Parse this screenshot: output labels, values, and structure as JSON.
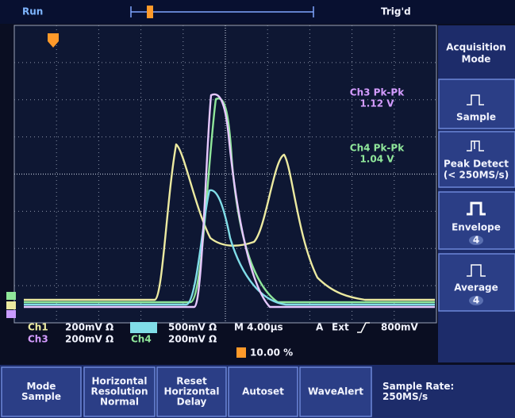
{
  "status": {
    "run": "Run",
    "trigger": "Trig'd"
  },
  "measurements": [
    {
      "label": "Ch3 Pk-Pk",
      "value": "1.12 V"
    },
    {
      "label": "Ch4 Pk-Pk",
      "value": "1.04 V"
    }
  ],
  "side_menu": {
    "title": [
      "Acquisition",
      "Mode"
    ],
    "items": [
      {
        "label": [
          "Sample"
        ]
      },
      {
        "label": [
          "Peak Detect",
          "(< 250MS/s)"
        ]
      },
      {
        "label": [
          "Envelope"
        ],
        "value": "4"
      },
      {
        "label": [
          "Average"
        ],
        "value": "4"
      }
    ]
  },
  "readout": {
    "ch1": "Ch1",
    "ch1_scale": "200mV Ω",
    "ch2_scale": "500mV Ω",
    "ch3": "Ch3",
    "ch3_scale": "200mV Ω",
    "ch4": "Ch4",
    "ch4_scale": "200mV Ω",
    "timebase": "M 4.00µs",
    "trigger_source": "A",
    "trigger_coupling": "Ext",
    "trigger_level": "800mV",
    "position": "10.00 %"
  },
  "bottom_menu": [
    {
      "label": [
        "Mode",
        "Sample"
      ]
    },
    {
      "label": [
        "Horizontal",
        "Resolution",
        "Normal"
      ]
    },
    {
      "label": [
        "Reset",
        "Horizontal",
        "Delay"
      ]
    },
    {
      "label": [
        "Autoset"
      ]
    },
    {
      "label": [
        "WaveAlert"
      ]
    },
    {
      "label": [
        "Sample Rate:",
        "250MS/s"
      ]
    }
  ]
}
